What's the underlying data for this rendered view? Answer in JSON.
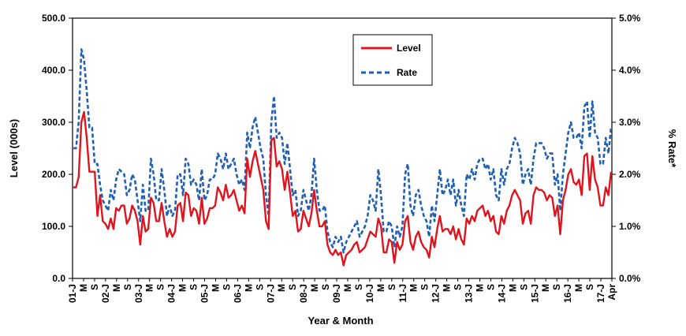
{
  "chart_data": {
    "type": "line",
    "xlabel": "Year & Month",
    "ylabel_left": "Level (000s)",
    "ylabel_right": "% Rate*",
    "ylim_left": [
      0,
      500
    ],
    "ylim_right": [
      0,
      5
    ],
    "yticks_left": [
      "0.0",
      "100.0",
      "200.0",
      "300.0",
      "400.0",
      "500.0"
    ],
    "yticks_right": [
      "0.0%",
      "1.0%",
      "2.0%",
      "3.0%",
      "4.0%",
      "5.0%"
    ],
    "x_tick_labels": [
      "01-J",
      "M",
      "S",
      "02-J",
      "M",
      "S",
      "03-J",
      "M",
      "S",
      "04-J",
      "M",
      "S",
      "05-J",
      "M",
      "S",
      "06-J",
      "M",
      "S",
      "07-J",
      "M",
      "S",
      "08-J",
      "M",
      "S",
      "09-J",
      "M",
      "S",
      "10-J",
      "M",
      "S",
      "11-J",
      "M",
      "S",
      "12-J",
      "M",
      "S",
      "13-J",
      "M",
      "S",
      "14-J",
      "M",
      "S",
      "15-J",
      "M",
      "S",
      "16-J",
      "M",
      "S",
      "17-J",
      "Apr"
    ],
    "grid": false,
    "legend_position": "top-center",
    "series": [
      {
        "name": "Level",
        "axis": "left",
        "color": "#e0141e",
        "style": "solid",
        "values": [
          175,
          175,
          195,
          300,
          320,
          270,
          205,
          205,
          205,
          120,
          160,
          110,
          105,
          95,
          115,
          95,
          135,
          130,
          140,
          140,
          105,
          115,
          140,
          130,
          110,
          65,
          120,
          90,
          95,
          155,
          145,
          110,
          110,
          145,
          110,
          80,
          95,
          80,
          90,
          140,
          145,
          110,
          165,
          160,
          120,
          135,
          130,
          105,
          155,
          105,
          115,
          135,
          135,
          140,
          175,
          165,
          150,
          180,
          155,
          160,
          170,
          150,
          130,
          140,
          125,
          230,
          195,
          225,
          245,
          220,
          195,
          170,
          110,
          95,
          265,
          270,
          215,
          225,
          210,
          170,
          205,
          165,
          120,
          130,
          90,
          95,
          130,
          115,
          100,
          125,
          170,
          130,
          100,
          100,
          110,
          65,
          50,
          45,
          55,
          45,
          50,
          25,
          45,
          50,
          55,
          65,
          70,
          50,
          55,
          60,
          75,
          90,
          85,
          80,
          115,
          100,
          50,
          50,
          75,
          70,
          30,
          70,
          55,
          65,
          110,
          120,
          70,
          55,
          80,
          90,
          70,
          60,
          55,
          40,
          80,
          60,
          95,
          120,
          90,
          95,
          95,
          85,
          100,
          75,
          95,
          75,
          65,
          115,
          105,
          120,
          110,
          130,
          135,
          140,
          120,
          130,
          110,
          120,
          90,
          85,
          120,
          105,
          130,
          140,
          160,
          170,
          160,
          150,
          105,
          125,
          130,
          105,
          160,
          175,
          170,
          170,
          165,
          150,
          160,
          155,
          120,
          140,
          85,
          150,
          170,
          200,
          210,
          185,
          180,
          190,
          160,
          235,
          240,
          170,
          235,
          190,
          175,
          140,
          140,
          175,
          160,
          205
        ]
      },
      {
        "name": "Rate",
        "axis": "right",
        "color": "#1f5fb4",
        "style": "dashed",
        "values": [
          2.5,
          2.5,
          3.0,
          4.4,
          4.2,
          3.6,
          2.9,
          2.9,
          2.2,
          2.2,
          1.8,
          1.5,
          1.4,
          1.3,
          1.7,
          1.5,
          1.9,
          2.1,
          2.05,
          2.0,
          1.6,
          1.7,
          2.0,
          1.9,
          1.5,
          1.1,
          1.8,
          1.3,
          1.3,
          2.3,
          2.0,
          1.5,
          1.5,
          2.1,
          1.7,
          1.2,
          1.4,
          1.2,
          1.3,
          2.0,
          2.0,
          1.6,
          2.3,
          2.2,
          1.8,
          1.9,
          1.8,
          1.5,
          2.1,
          1.5,
          1.6,
          1.9,
          1.9,
          2.0,
          2.4,
          2.3,
          2.1,
          2.4,
          2.1,
          2.2,
          2.3,
          2.0,
          1.8,
          1.9,
          1.7,
          2.8,
          2.5,
          2.9,
          3.1,
          2.8,
          2.5,
          2.3,
          1.6,
          1.2,
          3.0,
          3.5,
          2.7,
          2.8,
          2.7,
          2.2,
          2.6,
          2.1,
          1.6,
          1.7,
          1.2,
          1.3,
          1.7,
          1.5,
          1.3,
          1.6,
          2.3,
          1.7,
          1.3,
          1.3,
          1.4,
          0.9,
          0.7,
          0.6,
          0.8,
          0.7,
          0.8,
          0.5,
          0.7,
          0.8,
          0.9,
          1.0,
          1.1,
          0.8,
          0.9,
          1.0,
          1.2,
          1.6,
          1.5,
          1.3,
          2.1,
          1.6,
          0.9,
          0.9,
          1.1,
          1.0,
          0.6,
          1.0,
          0.8,
          1.0,
          2.0,
          2.2,
          1.4,
          1.2,
          1.6,
          1.7,
          1.4,
          1.2,
          1.1,
          0.8,
          1.4,
          1.1,
          1.6,
          2.1,
          1.6,
          1.7,
          1.9,
          1.6,
          1.9,
          1.4,
          1.7,
          1.4,
          1.2,
          2.0,
          1.9,
          2.1,
          1.9,
          2.2,
          2.3,
          2.3,
          2.1,
          2.2,
          1.9,
          2.1,
          1.6,
          1.5,
          2.1,
          1.8,
          2.1,
          2.2,
          2.5,
          2.7,
          2.6,
          2.4,
          1.8,
          2.0,
          2.1,
          1.8,
          2.3,
          2.6,
          2.6,
          2.6,
          2.5,
          2.3,
          2.4,
          2.4,
          1.8,
          2.0,
          1.3,
          2.0,
          2.4,
          2.8,
          3.0,
          2.7,
          2.7,
          2.8,
          2.5,
          3.3,
          3.4,
          2.7,
          3.4,
          2.8,
          2.7,
          2.2,
          2.2,
          2.7,
          2.4,
          2.9
        ]
      }
    ]
  }
}
